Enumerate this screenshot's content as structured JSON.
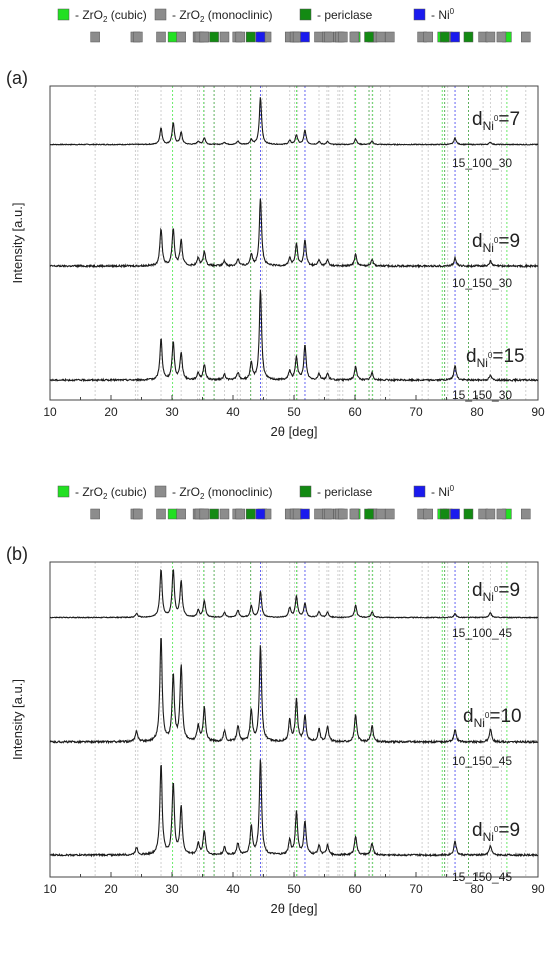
{
  "legend": {
    "items": [
      {
        "label_main": "- ZrO",
        "label_sub": "2",
        "label_tail": " (cubic)",
        "color": "#22e022",
        "icon": "cubic-zro2-swatch"
      },
      {
        "label_main": "- ZrO",
        "label_sub": "2",
        "label_tail": " (monoclinic)",
        "color": "#8c8c8c",
        "icon": "monoclinic-zro2-swatch"
      },
      {
        "label_main": "- periclase",
        "label_sub": "",
        "label_tail": "",
        "color": "#138a13",
        "icon": "periclase-swatch"
      },
      {
        "label_main": "- Ni",
        "label_sub": "",
        "label_sup": "0",
        "label_tail": "",
        "color": "#1a1aee",
        "icon": "ni0-swatch"
      }
    ]
  },
  "reference_markers": {
    "cubic": [
      30.1,
      35.2,
      50.4,
      60.1,
      62.9,
      74.3,
      84.9
    ],
    "monoclinic": [
      17.4,
      24.0,
      24.4,
      28.2,
      31.5,
      34.2,
      34.5,
      35.3,
      38.6,
      40.7,
      41.2,
      44.8,
      45.5,
      49.3,
      50.1,
      50.6,
      54.1,
      55.4,
      55.7,
      57.2,
      57.5,
      58.0,
      59.9,
      62.8,
      64.2,
      65.7,
      71.0,
      72.0,
      75.2,
      81.0,
      82.2,
      84.0,
      88.0
    ],
    "periclase": [
      36.9,
      42.9,
      62.3,
      74.7,
      78.6
    ],
    "ni0": [
      44.5,
      51.8,
      76.4
    ]
  },
  "panels": [
    {
      "label": "(a)",
      "ylabel": "Intensity [a.u.]",
      "xlabel": "2θ [deg]",
      "xticks": [
        "10",
        "20",
        "30",
        "40",
        "50",
        "60",
        "70",
        "80",
        "90"
      ],
      "traces": [
        {
          "name": "15_100_30",
          "d_main": "d",
          "d_sub": "Ni",
          "d_sup": "0",
          "d_value": "=7",
          "peak_scale": 0.8
        },
        {
          "name": "10_150_30",
          "d_main": "d",
          "d_sub": "Ni",
          "d_sup": "0",
          "d_value": "=9",
          "peak_scale": 0.8
        },
        {
          "name": "15_150_30",
          "d_main": "d",
          "d_sub": "Ni",
          "d_sup": "0",
          "d_value": "=15",
          "peak_scale": 0.8
        }
      ]
    },
    {
      "label": "(b)",
      "ylabel": "Intensity [a.u.]",
      "xlabel": "2θ [deg]",
      "xticks": [
        "10",
        "20",
        "30",
        "40",
        "50",
        "60",
        "70",
        "80",
        "90"
      ],
      "traces": [
        {
          "name": "15_100_45",
          "d_main": "d",
          "d_sub": "Ni",
          "d_sup": "0",
          "d_value": "=9",
          "peak_scale": 0.85
        },
        {
          "name": "10_150_45",
          "d_main": "d",
          "d_sub": "Ni",
          "d_sup": "0",
          "d_value": "=10",
          "peak_scale": 0.85
        },
        {
          "name": "15_150_45",
          "d_main": "d",
          "d_sub": "Ni",
          "d_sup": "0",
          "d_value": "=9",
          "peak_scale": 0.85
        }
      ]
    }
  ],
  "chart_data": [
    {
      "type": "line",
      "title": "(a)",
      "xlabel": "2θ [deg]",
      "ylabel": "Intensity [a.u.]",
      "xlim": [
        10,
        90
      ],
      "grid": false,
      "series": [
        {
          "name": "15_100_30",
          "peaks": [
            {
              "x": 28.2,
              "y": 0.35
            },
            {
              "x": 30.2,
              "y": 0.45
            },
            {
              "x": 31.5,
              "y": 0.25
            },
            {
              "x": 34.3,
              "y": 0.07
            },
            {
              "x": 35.3,
              "y": 0.14
            },
            {
              "x": 38.6,
              "y": 0.05
            },
            {
              "x": 40.8,
              "y": 0.07
            },
            {
              "x": 43.0,
              "y": 0.1
            },
            {
              "x": 44.5,
              "y": 1.0
            },
            {
              "x": 49.3,
              "y": 0.08
            },
            {
              "x": 50.4,
              "y": 0.2
            },
            {
              "x": 51.8,
              "y": 0.3
            },
            {
              "x": 54.1,
              "y": 0.06
            },
            {
              "x": 55.5,
              "y": 0.06
            },
            {
              "x": 60.1,
              "y": 0.12
            },
            {
              "x": 62.8,
              "y": 0.07
            },
            {
              "x": 76.4,
              "y": 0.14
            },
            {
              "x": 82.2,
              "y": 0.05
            }
          ]
        },
        {
          "name": "10_150_30",
          "peaks": [
            {
              "x": 28.2,
              "y": 0.38
            },
            {
              "x": 30.2,
              "y": 0.38
            },
            {
              "x": 31.5,
              "y": 0.26
            },
            {
              "x": 34.3,
              "y": 0.08
            },
            {
              "x": 35.3,
              "y": 0.15
            },
            {
              "x": 38.6,
              "y": 0.05
            },
            {
              "x": 40.8,
              "y": 0.07
            },
            {
              "x": 43.0,
              "y": 0.12
            },
            {
              "x": 44.5,
              "y": 0.7
            },
            {
              "x": 49.3,
              "y": 0.08
            },
            {
              "x": 50.4,
              "y": 0.22
            },
            {
              "x": 51.8,
              "y": 0.26
            },
            {
              "x": 54.1,
              "y": 0.06
            },
            {
              "x": 55.5,
              "y": 0.06
            },
            {
              "x": 60.1,
              "y": 0.12
            },
            {
              "x": 62.8,
              "y": 0.07
            },
            {
              "x": 76.4,
              "y": 0.08
            },
            {
              "x": 82.2,
              "y": 0.05
            }
          ]
        },
        {
          "name": "15_150_30",
          "peaks": [
            {
              "x": 28.2,
              "y": 0.45
            },
            {
              "x": 30.2,
              "y": 0.41
            },
            {
              "x": 31.5,
              "y": 0.3
            },
            {
              "x": 34.3,
              "y": 0.08
            },
            {
              "x": 35.3,
              "y": 0.17
            },
            {
              "x": 38.6,
              "y": 0.06
            },
            {
              "x": 40.8,
              "y": 0.08
            },
            {
              "x": 43.0,
              "y": 0.18
            },
            {
              "x": 44.5,
              "y": 1.0
            },
            {
              "x": 49.3,
              "y": 0.1
            },
            {
              "x": 50.4,
              "y": 0.25
            },
            {
              "x": 51.8,
              "y": 0.38
            },
            {
              "x": 54.1,
              "y": 0.07
            },
            {
              "x": 55.5,
              "y": 0.07
            },
            {
              "x": 60.1,
              "y": 0.15
            },
            {
              "x": 62.8,
              "y": 0.08
            },
            {
              "x": 76.4,
              "y": 0.16
            },
            {
              "x": 82.2,
              "y": 0.05
            }
          ]
        }
      ]
    },
    {
      "type": "line",
      "title": "(b)",
      "xlabel": "2θ [deg]",
      "ylabel": "Intensity [a.u.]",
      "xlim": [
        10,
        90
      ],
      "grid": false,
      "series": [
        {
          "name": "15_100_45",
          "peaks": [
            {
              "x": 24.2,
              "y": 0.08
            },
            {
              "x": 28.2,
              "y": 1.0
            },
            {
              "x": 30.2,
              "y": 1.0
            },
            {
              "x": 31.5,
              "y": 0.75
            },
            {
              "x": 34.3,
              "y": 0.15
            },
            {
              "x": 35.3,
              "y": 0.35
            },
            {
              "x": 38.6,
              "y": 0.1
            },
            {
              "x": 40.8,
              "y": 0.15
            },
            {
              "x": 43.0,
              "y": 0.25
            },
            {
              "x": 44.5,
              "y": 0.55
            },
            {
              "x": 49.3,
              "y": 0.2
            },
            {
              "x": 50.4,
              "y": 0.45
            },
            {
              "x": 51.8,
              "y": 0.3
            },
            {
              "x": 54.1,
              "y": 0.12
            },
            {
              "x": 55.5,
              "y": 0.12
            },
            {
              "x": 60.1,
              "y": 0.25
            },
            {
              "x": 62.8,
              "y": 0.12
            },
            {
              "x": 76.4,
              "y": 0.08
            },
            {
              "x": 82.2,
              "y": 0.1
            }
          ]
        },
        {
          "name": "10_150_45",
          "peaks": [
            {
              "x": 24.2,
              "y": 0.1
            },
            {
              "x": 28.2,
              "y": 1.0
            },
            {
              "x": 30.2,
              "y": 0.62
            },
            {
              "x": 31.5,
              "y": 0.72
            },
            {
              "x": 34.3,
              "y": 0.15
            },
            {
              "x": 35.3,
              "y": 0.32
            },
            {
              "x": 38.6,
              "y": 0.1
            },
            {
              "x": 40.8,
              "y": 0.15
            },
            {
              "x": 43.0,
              "y": 0.3
            },
            {
              "x": 44.5,
              "y": 0.9
            },
            {
              "x": 49.3,
              "y": 0.2
            },
            {
              "x": 50.4,
              "y": 0.4
            },
            {
              "x": 51.8,
              "y": 0.25
            },
            {
              "x": 54.1,
              "y": 0.12
            },
            {
              "x": 55.5,
              "y": 0.15
            },
            {
              "x": 60.1,
              "y": 0.25
            },
            {
              "x": 62.8,
              "y": 0.15
            },
            {
              "x": 76.4,
              "y": 0.12
            },
            {
              "x": 82.2,
              "y": 0.12
            }
          ]
        },
        {
          "name": "15_150_45",
          "peaks": [
            {
              "x": 24.2,
              "y": 0.08
            },
            {
              "x": 28.2,
              "y": 0.95
            },
            {
              "x": 30.2,
              "y": 0.75
            },
            {
              "x": 31.5,
              "y": 0.5
            },
            {
              "x": 34.3,
              "y": 0.12
            },
            {
              "x": 35.3,
              "y": 0.25
            },
            {
              "x": 38.6,
              "y": 0.08
            },
            {
              "x": 40.8,
              "y": 0.12
            },
            {
              "x": 43.0,
              "y": 0.3
            },
            {
              "x": 44.5,
              "y": 1.0
            },
            {
              "x": 49.3,
              "y": 0.15
            },
            {
              "x": 50.4,
              "y": 0.45
            },
            {
              "x": 51.8,
              "y": 0.35
            },
            {
              "x": 54.1,
              "y": 0.1
            },
            {
              "x": 55.5,
              "y": 0.1
            },
            {
              "x": 60.1,
              "y": 0.2
            },
            {
              "x": 62.8,
              "y": 0.12
            },
            {
              "x": 76.4,
              "y": 0.15
            },
            {
              "x": 82.2,
              "y": 0.1
            }
          ]
        }
      ]
    }
  ]
}
